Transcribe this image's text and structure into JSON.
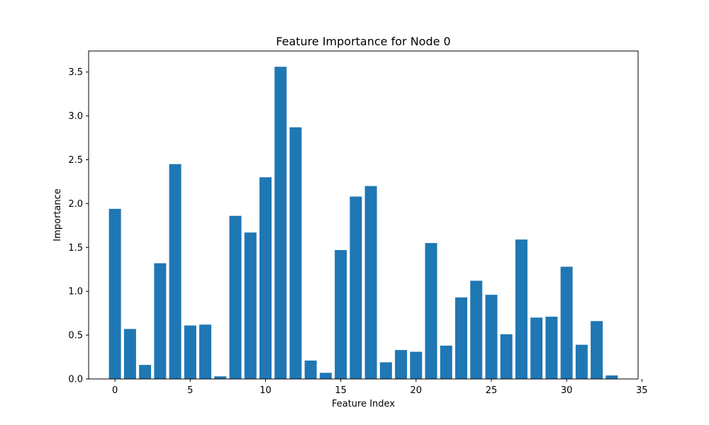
{
  "chart_data": {
    "type": "bar",
    "title": "Feature Importance for Node 0",
    "xlabel": "Feature Index",
    "ylabel": "Importance",
    "x": [
      0,
      1,
      2,
      3,
      4,
      5,
      6,
      7,
      8,
      9,
      10,
      11,
      12,
      13,
      14,
      15,
      16,
      17,
      18,
      19,
      20,
      21,
      22,
      23,
      24,
      25,
      26,
      27,
      28,
      29,
      30,
      31,
      32,
      33
    ],
    "values": [
      1.94,
      0.57,
      0.16,
      1.32,
      2.45,
      0.61,
      0.62,
      0.03,
      1.86,
      1.67,
      2.3,
      3.56,
      2.87,
      0.21,
      0.07,
      1.47,
      2.08,
      2.2,
      0.19,
      0.33,
      0.31,
      1.55,
      0.38,
      0.93,
      1.12,
      0.96,
      0.51,
      1.59,
      0.7,
      0.71,
      1.28,
      0.39,
      0.66,
      0.04
    ],
    "xlim": [
      -1.75,
      34.75
    ],
    "ylim": [
      0,
      3.74
    ],
    "xticks": [
      0,
      5,
      10,
      15,
      20,
      25,
      30,
      35
    ],
    "yticks": [
      0.0,
      0.5,
      1.0,
      1.5,
      2.0,
      2.5,
      3.0,
      3.5
    ],
    "xtick_labels": [
      "0",
      "5",
      "10",
      "15",
      "20",
      "25",
      "30",
      "35"
    ],
    "ytick_labels": [
      "0.0",
      "0.5",
      "1.0",
      "1.5",
      "2.0",
      "2.5",
      "3.0",
      "3.5"
    ],
    "bar_width": 0.8,
    "bar_color": "#1f77b4",
    "grid": false,
    "legend": false
  }
}
